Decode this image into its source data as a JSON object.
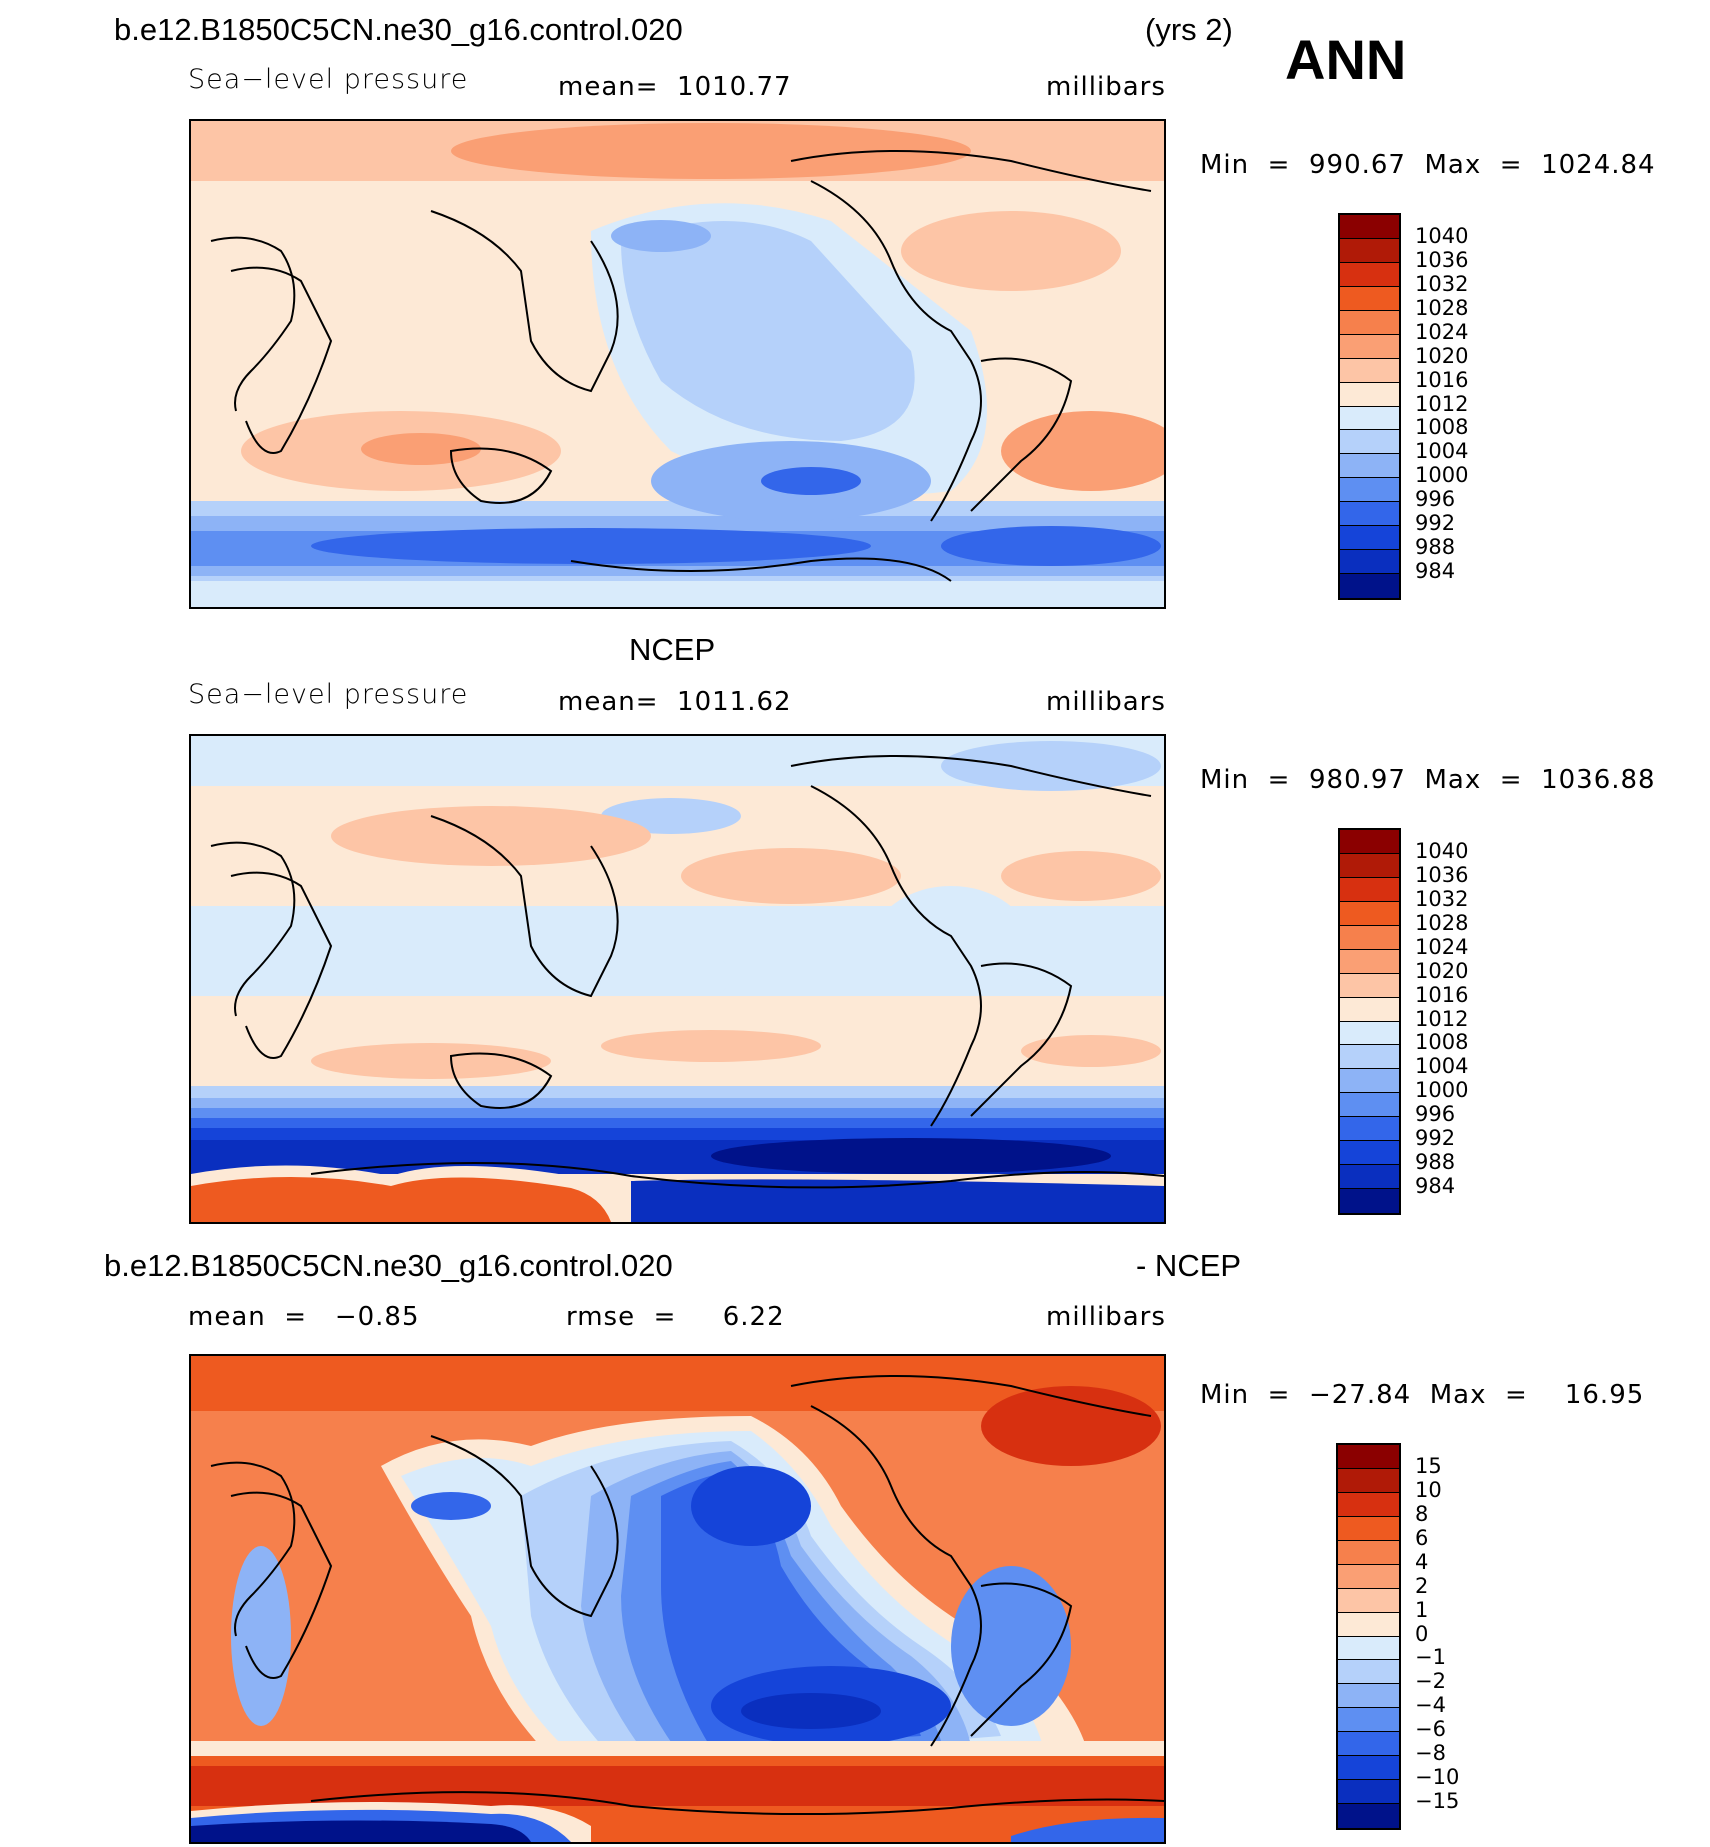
{
  "header": {
    "case_name": "b.e12.B1850C5CN.ne30_g16.control.020",
    "years": "(yrs 2)",
    "season": "ANN"
  },
  "panels": [
    {
      "title": "",
      "variable": "Sea−level pressure",
      "stat": "mean=  1010.77",
      "units": "millibars",
      "minmax": "Min  =  990.67  Max  =  1024.84",
      "colorbar": {
        "labels": [
          "1040",
          "1036",
          "1032",
          "1028",
          "1024",
          "1020",
          "1016",
          "1012",
          "1008",
          "1004",
          "1000",
          "996",
          "992",
          "988",
          "984"
        ],
        "colors": [
          "#8b0000",
          "#b01a07",
          "#d73010",
          "#ee5a20",
          "#f6804c",
          "#fa9f74",
          "#fdc5a6",
          "#fde9d6",
          "#d9ebfb",
          "#b5d1fa",
          "#8db3f6",
          "#5e8ff2",
          "#3366ea",
          "#1544d9",
          "#0a2fbf",
          "#00128a"
        ]
      },
      "legend_side": "right"
    },
    {
      "title": "NCEP",
      "variable": "Sea−level pressure",
      "stat": "mean=  1011.62",
      "units": "millibars",
      "minmax": "Min  =  980.97  Max  =  1036.88",
      "colorbar": {
        "labels": [
          "1040",
          "1036",
          "1032",
          "1028",
          "1024",
          "1020",
          "1016",
          "1012",
          "1008",
          "1004",
          "1000",
          "996",
          "992",
          "988",
          "984"
        ],
        "colors": [
          "#8b0000",
          "#b01a07",
          "#d73010",
          "#ee5a20",
          "#f6804c",
          "#fa9f74",
          "#fdc5a6",
          "#fde9d6",
          "#d9ebfb",
          "#b5d1fa",
          "#8db3f6",
          "#5e8ff2",
          "#3366ea",
          "#1544d9",
          "#0a2fbf",
          "#00128a"
        ]
      }
    },
    {
      "title_left": "b.e12.B1850C5CN.ne30_g16.control.020",
      "title_right": "- NCEP",
      "stat_mean": "mean  =   −0.85",
      "stat_rmse": "rmse  =     6.22",
      "units": "millibars",
      "minmax": "Min  =  −27.84  Max  =    16.95",
      "colorbar": {
        "labels": [
          "15",
          "10",
          "8",
          "6",
          "4",
          "2",
          "1",
          "0",
          "−1",
          "−2",
          "−4",
          "−6",
          "−8",
          "−10",
          "−15"
        ],
        "colors": [
          "#8b0000",
          "#b01a07",
          "#d73010",
          "#ee5a20",
          "#f6804c",
          "#fa9f74",
          "#fdc5a6",
          "#fde9d6",
          "#d9ebfb",
          "#b5d1fa",
          "#8db3f6",
          "#5e8ff2",
          "#3366ea",
          "#1544d9",
          "#0a2fbf",
          "#00128a"
        ]
      }
    }
  ]
}
